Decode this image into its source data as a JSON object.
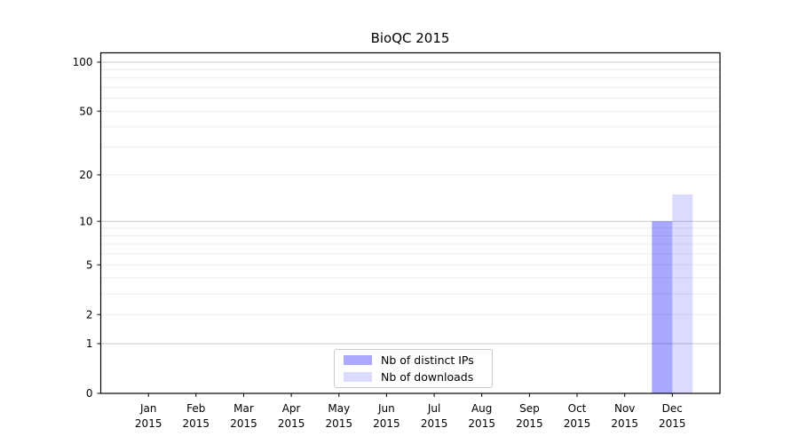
{
  "chart_data": {
    "type": "bar",
    "title": "BioQC 2015",
    "categories": [
      "Jan",
      "Feb",
      "Mar",
      "Apr",
      "May",
      "Jun",
      "Jul",
      "Aug",
      "Sep",
      "Oct",
      "Nov",
      "Dec"
    ],
    "category_year": "2015",
    "series": [
      {
        "name": "Nb of distinct IPs",
        "fill": "#0000ff",
        "fill_opacity": 0.34,
        "legend_color": "#aaaaff",
        "values": [
          0,
          0,
          0,
          0,
          0,
          0,
          0,
          0,
          0,
          0,
          0,
          10
        ]
      },
      {
        "name": "Nb of downloads",
        "fill": "#0000ff",
        "fill_opacity": 0.14,
        "legend_color": "#dbdbff",
        "values": [
          0,
          0,
          0,
          0,
          0,
          0,
          0,
          0,
          0,
          0,
          0,
          15
        ]
      }
    ],
    "xlabel": "",
    "ylabel": "",
    "yscale": "log1p",
    "ylim": [
      0,
      114
    ],
    "yticks": [
      0,
      1,
      2,
      5,
      10,
      20,
      50,
      100
    ],
    "grid": {
      "major_values": [
        1,
        10,
        100
      ],
      "minor_values": [
        2,
        3,
        4,
        5,
        6,
        7,
        8,
        9,
        20,
        30,
        40,
        50,
        60,
        70,
        80,
        90
      ],
      "major_color": "#c9c9c9",
      "minor_color": "#ececec"
    },
    "legend": {
      "position": "lower center"
    },
    "axis_color": "#000000",
    "text_color": "#000000",
    "background": "#ffffff"
  }
}
